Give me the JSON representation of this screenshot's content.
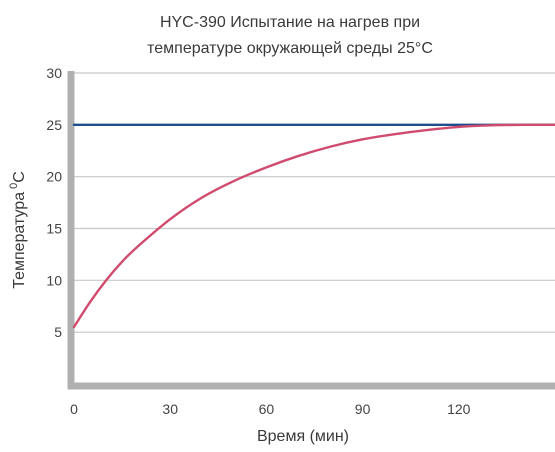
{
  "chart_data": {
    "type": "line",
    "title_lines": [
      "HYC-390 Испытание на нагрев при",
      "температуре окружающей среды 25°C"
    ],
    "xlabel": "Время (мин)",
    "ylabel": "Температура",
    "ylabel_sup": "0",
    "ylabel_unit": "C",
    "xlim": [
      0,
      150
    ],
    "ylim": [
      0,
      30
    ],
    "x_ticks": [
      0,
      30,
      60,
      90,
      120
    ],
    "x_tick_labels": [
      "0",
      "30",
      "60",
      "90",
      "120"
    ],
    "y_ticks": [
      5,
      10,
      15,
      20,
      25,
      30
    ],
    "y_tick_labels": [
      "5",
      "10",
      "15",
      "20",
      "25",
      "30"
    ],
    "grid": true,
    "series": [
      {
        "color": "#1f4e8c",
        "x": [
          0,
          150
        ],
        "y": [
          25,
          25
        ]
      },
      {
        "color": "#d04b6e",
        "x": [
          0,
          5,
          10,
          15,
          20,
          30,
          40,
          50,
          60,
          70,
          80,
          90,
          100,
          110,
          120,
          130,
          140,
          150
        ],
        "y": [
          5.5,
          7.9,
          10.0,
          11.8,
          13.3,
          15.9,
          18.0,
          19.6,
          20.9,
          22.0,
          22.9,
          23.6,
          24.1,
          24.5,
          24.8,
          24.95,
          25.0,
          25.0
        ]
      }
    ]
  }
}
